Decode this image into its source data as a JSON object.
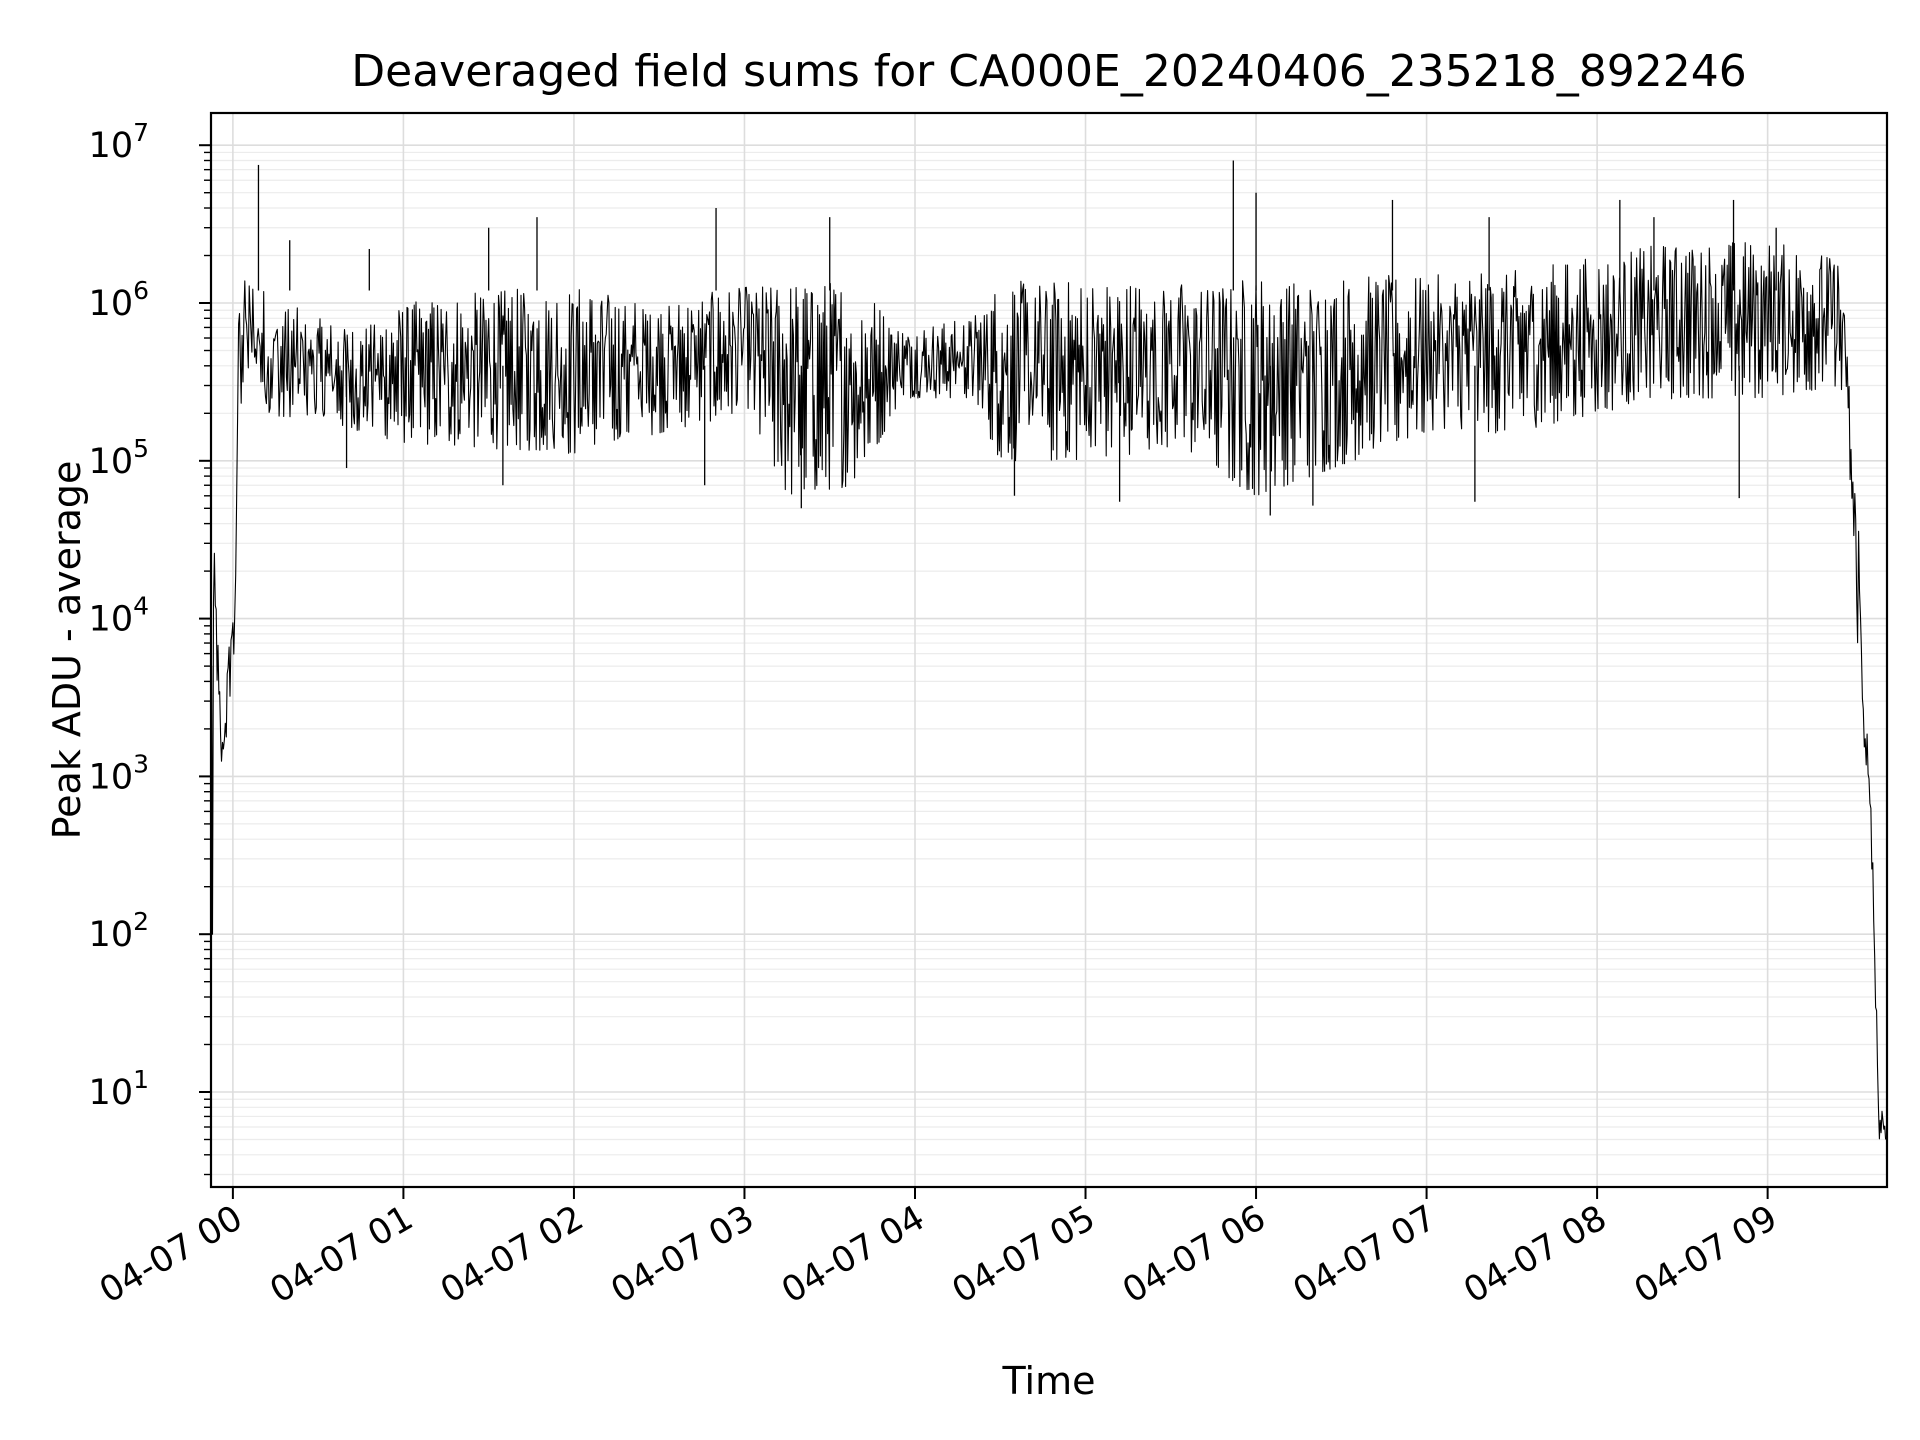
{
  "chart_data": {
    "type": "line",
    "title": "Deaveraged field sums for CA000E_20240406_235218_892246",
    "xlabel": "Time",
    "ylabel": "Peak ADU - average",
    "y_scale": "log",
    "grid": true,
    "minor_grid": true,
    "line_color": "#000000",
    "x_range": [
      "2024-04-06T23:52:18",
      "2024-04-07T09:42:00"
    ],
    "y_range": [
      2.5,
      16000000
    ],
    "x_ticks": [
      {
        "time": "2024-04-07T00:00",
        "label": "04-07 00"
      },
      {
        "time": "2024-04-07T01:00",
        "label": "04-07 01"
      },
      {
        "time": "2024-04-07T02:00",
        "label": "04-07 02"
      },
      {
        "time": "2024-04-07T03:00",
        "label": "04-07 03"
      },
      {
        "time": "2024-04-07T04:00",
        "label": "04-07 04"
      },
      {
        "time": "2024-04-07T05:00",
        "label": "04-07 05"
      },
      {
        "time": "2024-04-07T06:00",
        "label": "04-07 06"
      },
      {
        "time": "2024-04-07T07:00",
        "label": "04-07 07"
      },
      {
        "time": "2024-04-07T08:00",
        "label": "04-07 08"
      },
      {
        "time": "2024-04-07T09:00",
        "label": "04-07 09"
      }
    ],
    "y_ticks": [
      {
        "value": 10,
        "base": "10",
        "exp": "1"
      },
      {
        "value": 100,
        "base": "10",
        "exp": "2"
      },
      {
        "value": 1000,
        "base": "10",
        "exp": "3"
      },
      {
        "value": 10000,
        "base": "10",
        "exp": "4"
      },
      {
        "value": 100000,
        "base": "10",
        "exp": "5"
      },
      {
        "value": 1000000,
        "base": "10",
        "exp": "6"
      },
      {
        "value": 10000000,
        "base": "10",
        "exp": "7"
      }
    ],
    "series": [
      {
        "envelope": [
          {
            "t": "2024-04-06T23:52:30",
            "low": 3,
            "high": 35000
          },
          {
            "t": "2024-04-06T23:53:30",
            "low": 11000,
            "high": 26000
          },
          {
            "t": "2024-04-06T23:56:00",
            "low": 700,
            "high": 2000
          },
          {
            "t": "2024-04-06T23:58:00",
            "low": 2000,
            "high": 5000
          },
          {
            "t": "2024-04-07T00:00:00",
            "low": 5000,
            "high": 15000
          },
          {
            "t": "2024-04-07T00:01:00",
            "low": 6000,
            "high": 20000
          },
          {
            "t": "2024-04-07T00:02:00",
            "low": 200000,
            "high": 1600000
          },
          {
            "t": "2024-04-07T00:07:00",
            "low": 300000,
            "high": 1400000
          },
          {
            "t": "2024-04-07T00:15:00",
            "low": 150000,
            "high": 1100000
          },
          {
            "t": "2024-04-07T00:30:00",
            "low": 180000,
            "high": 800000
          },
          {
            "t": "2024-04-07T00:45:00",
            "low": 150000,
            "high": 700000
          },
          {
            "t": "2024-04-07T01:00:00",
            "low": 130000,
            "high": 1000000
          },
          {
            "t": "2024-04-07T01:30:00",
            "low": 120000,
            "high": 1200000
          },
          {
            "t": "2024-04-07T02:00:00",
            "low": 110000,
            "high": 1300000
          },
          {
            "t": "2024-04-07T02:30:00",
            "low": 150000,
            "high": 1000000
          },
          {
            "t": "2024-04-07T03:00:00",
            "low": 200000,
            "high": 1300000
          },
          {
            "t": "2024-04-07T03:15:00",
            "low": 60000,
            "high": 1400000
          },
          {
            "t": "2024-04-07T03:40:00",
            "low": 70000,
            "high": 1400000
          },
          {
            "t": "2024-04-07T03:55:00",
            "low": 250000,
            "high": 700000
          },
          {
            "t": "2024-04-07T04:20:00",
            "low": 250000,
            "high": 800000
          },
          {
            "t": "2024-04-07T04:30:00",
            "low": 100000,
            "high": 1400000
          },
          {
            "t": "2024-04-07T05:00:00",
            "low": 100000,
            "high": 1400000
          },
          {
            "t": "2024-04-07T05:30:00",
            "low": 120000,
            "high": 1400000
          },
          {
            "t": "2024-04-07T06:00:00",
            "low": 60000,
            "high": 1500000
          },
          {
            "t": "2024-04-07T06:20:00",
            "low": 80000,
            "high": 1500000
          },
          {
            "t": "2024-04-07T07:00:00",
            "low": 150000,
            "high": 1500000
          },
          {
            "t": "2024-04-07T07:30:00",
            "low": 150000,
            "high": 1600000
          },
          {
            "t": "2024-04-07T08:00:00",
            "low": 200000,
            "high": 2000000
          },
          {
            "t": "2024-04-07T08:30:00",
            "low": 250000,
            "high": 2500000
          },
          {
            "t": "2024-04-07T09:00:00",
            "low": 250000,
            "high": 2500000
          },
          {
            "t": "2024-04-07T09:25:00",
            "low": 300000,
            "high": 2000000
          },
          {
            "t": "2024-04-07T09:28:00",
            "low": 150000,
            "high": 600000
          },
          {
            "t": "2024-04-07T09:30:00",
            "low": 30000,
            "high": 100000
          },
          {
            "t": "2024-04-07T09:32:00",
            "low": 5000,
            "high": 50000
          },
          {
            "t": "2024-04-07T09:33:00",
            "low": 2200,
            "high": 10000
          },
          {
            "t": "2024-04-07T09:35:00",
            "low": 900,
            "high": 2000
          },
          {
            "t": "2024-04-07T09:37:00",
            "low": 150,
            "high": 400
          },
          {
            "t": "2024-04-07T09:39:00",
            "low": 5,
            "high": 10
          },
          {
            "t": "2024-04-07T09:41:30",
            "low": 5,
            "high": 6
          }
        ],
        "spikes": [
          {
            "t": "2024-04-07T00:09:00",
            "value": 7500000
          },
          {
            "t": "2024-04-07T00:20:00",
            "value": 2500000
          },
          {
            "t": "2024-04-07T00:48:00",
            "value": 2200000
          },
          {
            "t": "2024-04-07T01:30:00",
            "value": 3000000
          },
          {
            "t": "2024-04-07T01:47:00",
            "value": 3500000
          },
          {
            "t": "2024-04-07T02:50:00",
            "value": 4000000
          },
          {
            "t": "2024-04-07T03:30:00",
            "value": 3500000
          },
          {
            "t": "2024-04-07T05:52:00",
            "value": 8000000
          },
          {
            "t": "2024-04-07T06:00:00",
            "value": 5000000
          },
          {
            "t": "2024-04-07T06:48:00",
            "value": 4500000
          },
          {
            "t": "2024-04-07T07:22:00",
            "value": 3500000
          },
          {
            "t": "2024-04-07T08:08:00",
            "value": 4500000
          },
          {
            "t": "2024-04-07T08:20:00",
            "value": 3500000
          },
          {
            "t": "2024-04-07T08:48:00",
            "value": 4500000
          },
          {
            "t": "2024-04-07T09:03:00",
            "value": 3000000
          }
        ],
        "dips": [
          {
            "t": "2024-04-07T00:40:00",
            "value": 90000
          },
          {
            "t": "2024-04-07T01:35:00",
            "value": 70000
          },
          {
            "t": "2024-04-07T02:46:00",
            "value": 70000
          },
          {
            "t": "2024-04-07T03:20:00",
            "value": 50000
          },
          {
            "t": "2024-04-07T04:35:00",
            "value": 60000
          },
          {
            "t": "2024-04-07T05:12:00",
            "value": 55000
          },
          {
            "t": "2024-04-07T06:05:00",
            "value": 45000
          },
          {
            "t": "2024-04-07T06:20:00",
            "value": 52000
          },
          {
            "t": "2024-04-07T07:17:00",
            "value": 55000
          },
          {
            "t": "2024-04-07T08:50:00",
            "value": 58000
          }
        ]
      }
    ]
  }
}
